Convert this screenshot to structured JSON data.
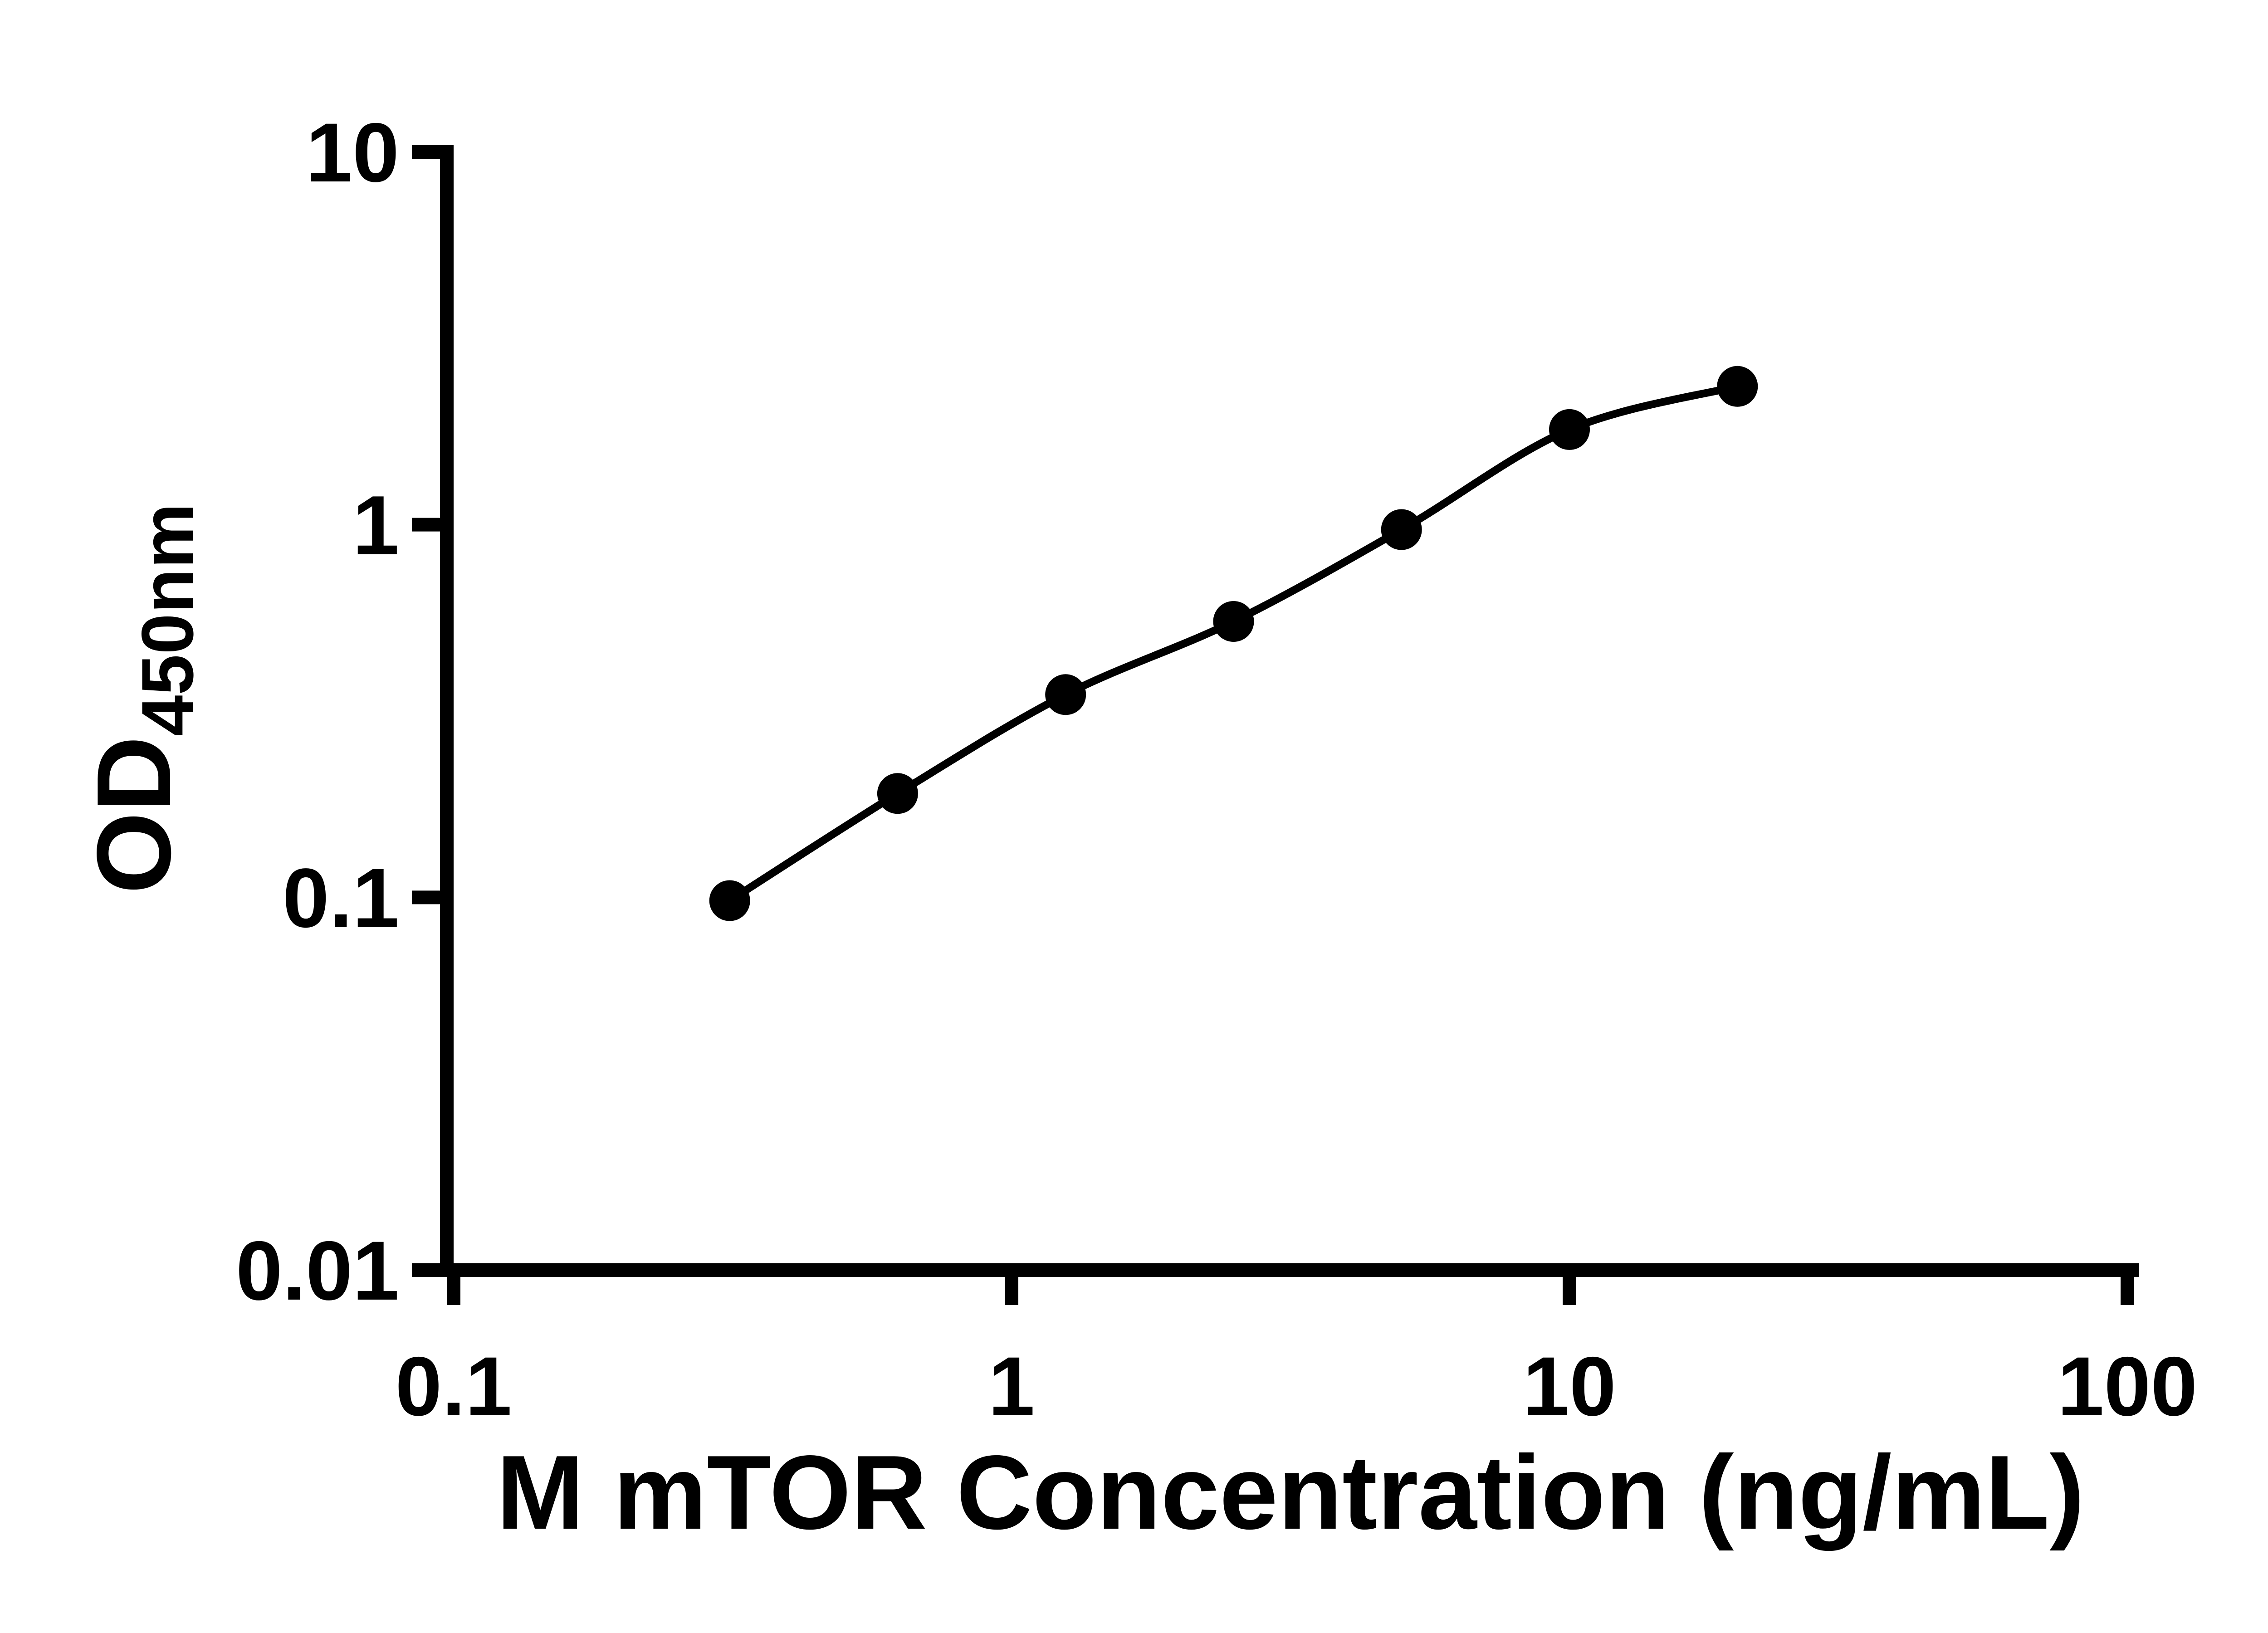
{
  "chart_data": {
    "type": "scatter",
    "title": "",
    "xlabel": "M mTOR Concentration (ng/mL)",
    "ylabel": "OD450nm",
    "ylabel_main": "OD",
    "ylabel_sub": "450nm",
    "x_scale": "log10",
    "y_scale": "log10",
    "xlim": [
      0.1,
      100
    ],
    "ylim": [
      0.01,
      10
    ],
    "x_ticks": [
      {
        "value": 0.1,
        "label": "0.1"
      },
      {
        "value": 1,
        "label": "1"
      },
      {
        "value": 10,
        "label": "10"
      },
      {
        "value": 100,
        "label": "100"
      }
    ],
    "y_ticks": [
      {
        "value": 10,
        "label": "10"
      },
      {
        "value": 1,
        "label": "1"
      },
      {
        "value": 0.1,
        "label": "0.1"
      },
      {
        "value": 0.01,
        "label": "0.01"
      }
    ],
    "points": [
      {
        "x": 0.3125,
        "od": 0.098
      },
      {
        "x": 0.625,
        "od": 0.19
      },
      {
        "x": 1.25,
        "od": 0.35
      },
      {
        "x": 2.5,
        "od": 0.55
      },
      {
        "x": 5,
        "od": 0.97
      },
      {
        "x": 10,
        "od": 1.8
      },
      {
        "x": 20,
        "od": 2.35
      }
    ],
    "has_fit_line": true,
    "fit_line_style": "smooth sigmoidal (4PL-style) curve through points",
    "marker": {
      "shape": "filled-circle",
      "color": "#000000"
    },
    "line_color": "#000000",
    "axis_color": "#000000",
    "background_color": "#ffffff",
    "legend": null,
    "grid": false
  }
}
